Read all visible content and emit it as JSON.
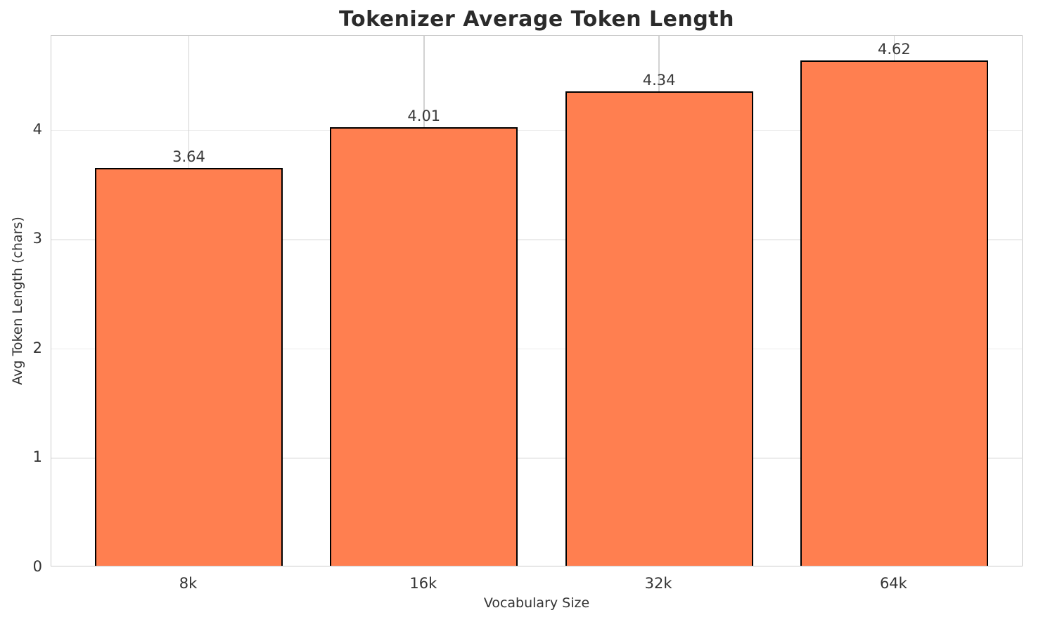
{
  "chart_data": {
    "type": "bar",
    "title": "Tokenizer Average Token Length",
    "xlabel": "Vocabulary Size",
    "ylabel": "Avg Token Length (chars)",
    "categories": [
      "8k",
      "16k",
      "32k",
      "64k"
    ],
    "values": [
      3.64,
      4.01,
      4.34,
      4.62
    ],
    "value_labels": [
      "3.64",
      "4.01",
      "4.34",
      "4.62"
    ],
    "yticks": [
      0,
      1,
      2,
      3,
      4
    ],
    "ylim": [
      0,
      4.86
    ],
    "grid": true,
    "legend": "none",
    "colors": {
      "bar_fill": "#FF7F50",
      "bar_edge": "#000000",
      "h_grid": "#ececec",
      "v_grid": "#d2d2d2",
      "spine": "#cccccc",
      "title_text": "#2b2b2b",
      "tick_text": "#333333"
    }
  }
}
